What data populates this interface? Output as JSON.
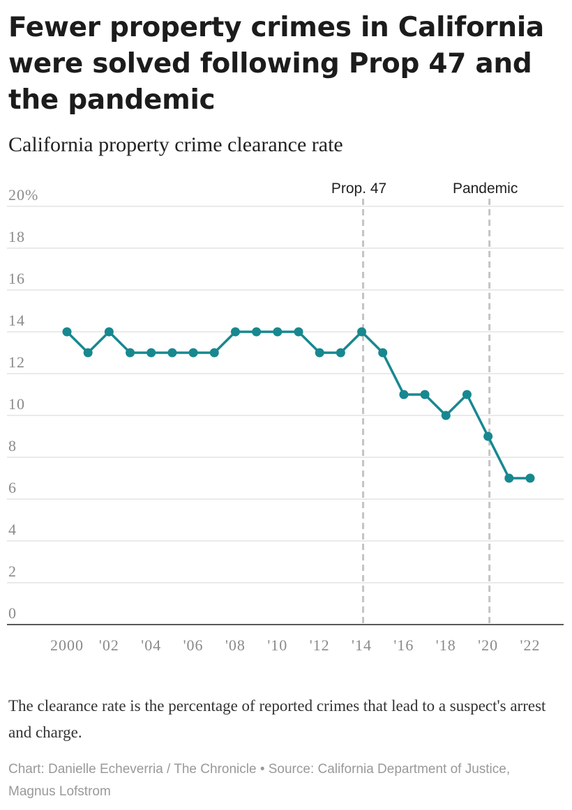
{
  "title": "Fewer property crimes in California were solved following Prop 47 and the pandemic",
  "subtitle": "California property crime clearance rate",
  "note": "The clearance rate is the percentage of reported crimes that lead to a suspect's arrest and charge.",
  "credit": "Chart: Danielle Echeverria / The Chronicle • Source: California Department of Justice, Magnus Lofstrom",
  "colors": {
    "line": "#17888f",
    "grid": "#dddddd",
    "event": "#c4c4c4",
    "axis": "#222222",
    "ticks": "#8a8a8a"
  },
  "chart_data": {
    "type": "line",
    "title": "California property crime clearance rate",
    "xlabel": "",
    "ylabel": "",
    "xlim": [
      2000,
      2022
    ],
    "ylim": [
      0,
      20
    ],
    "grid": true,
    "series": [
      {
        "x": [
          2000,
          2001,
          2002,
          2003,
          2004,
          2005,
          2006,
          2007,
          2008,
          2009,
          2010,
          2011,
          2012,
          2013,
          2014,
          2015,
          2016,
          2017,
          2018,
          2019,
          2020,
          2021,
          2022
        ],
        "values": [
          14,
          13,
          14,
          13,
          13,
          13,
          13,
          13,
          14,
          14,
          14,
          14,
          13,
          13,
          14,
          13,
          11,
          11,
          10,
          11,
          9,
          7,
          7
        ]
      }
    ],
    "y_ticks": [
      {
        "value": 0,
        "label": "0"
      },
      {
        "value": 2,
        "label": "2"
      },
      {
        "value": 4,
        "label": "4"
      },
      {
        "value": 6,
        "label": "6"
      },
      {
        "value": 8,
        "label": "8"
      },
      {
        "value": 10,
        "label": "10"
      },
      {
        "value": 12,
        "label": "12"
      },
      {
        "value": 14,
        "label": "14"
      },
      {
        "value": 16,
        "label": "16"
      },
      {
        "value": 18,
        "label": "18"
      },
      {
        "value": 20,
        "label": "20%"
      }
    ],
    "x_ticks": [
      {
        "value": 2000,
        "label": "2000"
      },
      {
        "value": 2002,
        "label": "'02"
      },
      {
        "value": 2004,
        "label": "'04"
      },
      {
        "value": 2006,
        "label": "'06"
      },
      {
        "value": 2008,
        "label": "'08"
      },
      {
        "value": 2010,
        "label": "'10"
      },
      {
        "value": 2012,
        "label": "'12"
      },
      {
        "value": 2014,
        "label": "'14"
      },
      {
        "value": 2016,
        "label": "'16"
      },
      {
        "value": 2018,
        "label": "'18"
      },
      {
        "value": 2020,
        "label": "'20"
      },
      {
        "value": 2022,
        "label": "'22"
      }
    ],
    "annotations": [
      {
        "x": 2014,
        "label": "Prop. 47"
      },
      {
        "x": 2020,
        "label": "Pandemic"
      }
    ]
  }
}
